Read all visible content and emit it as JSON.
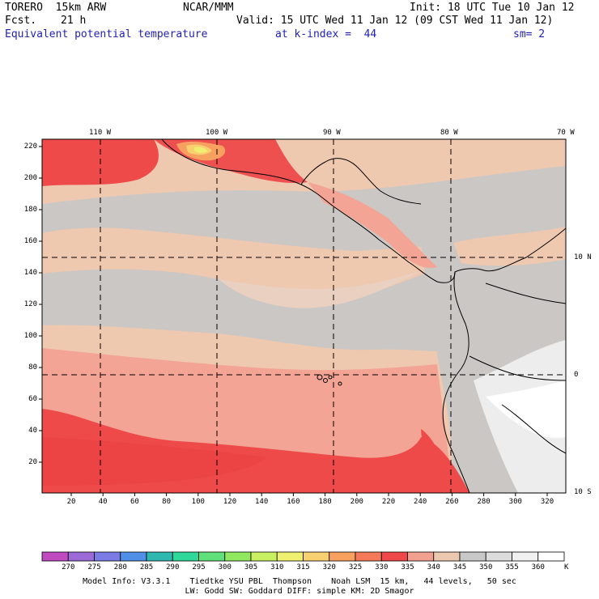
{
  "header": {
    "model": "TORERO  15km ARW",
    "center": "NCAR/MMM",
    "init": "Init: 18 UTC Tue 10 Jan 12",
    "fcst_label": "Fcst.",
    "fcst_value": "21 h",
    "valid": "Valid: 15 UTC Wed 11 Jan 12 (09 CST Wed 11 Jan 12)",
    "field": "Equivalent potential temperature",
    "level": "at k-index =  44",
    "smoothing": "sm= 2"
  },
  "map": {
    "lon_labels": [
      "110 W",
      "100 W",
      "90 W",
      "80 W",
      "70 W"
    ],
    "lat_labels": [
      "10 N",
      "0",
      "10 S"
    ],
    "y_ticks": [
      "220",
      "200",
      "180",
      "160",
      "140",
      "120",
      "100",
      "80",
      "60",
      "40",
      "20"
    ],
    "x_ticks": [
      "20",
      "40",
      "60",
      "80",
      "100",
      "120",
      "140",
      "160",
      "180",
      "200",
      "220",
      "240",
      "260",
      "280",
      "300",
      "320"
    ]
  },
  "colorbar": {
    "unit": "K",
    "labels": [
      "270",
      "275",
      "280",
      "285",
      "290",
      "295",
      "300",
      "305",
      "310",
      "315",
      "320",
      "325",
      "330",
      "335",
      "340",
      "345",
      "350",
      "355",
      "360"
    ],
    "colors": [
      "#c04bc0",
      "#9b6ad6",
      "#7b7be6",
      "#4f8fe8",
      "#2eb8b0",
      "#2ed89a",
      "#5fe07a",
      "#90e860",
      "#c8f060",
      "#f0f070",
      "#f8d070",
      "#f8a060",
      "#f47a5a",
      "#ee4848",
      "#f2a090",
      "#ecc8b0",
      "#c8c8c8",
      "#dcdcdc",
      "#f0f0f0",
      "#ffffff"
    ]
  },
  "footer": {
    "line1": "Model Info: V3.3.1    Tiedtke YSU PBL  Thompson    Noah LSM  15 km,   44 levels,   50 sec",
    "line2": "LW: Godd SW: Goddard DIFF: simple KM: 2D Smagor"
  }
}
